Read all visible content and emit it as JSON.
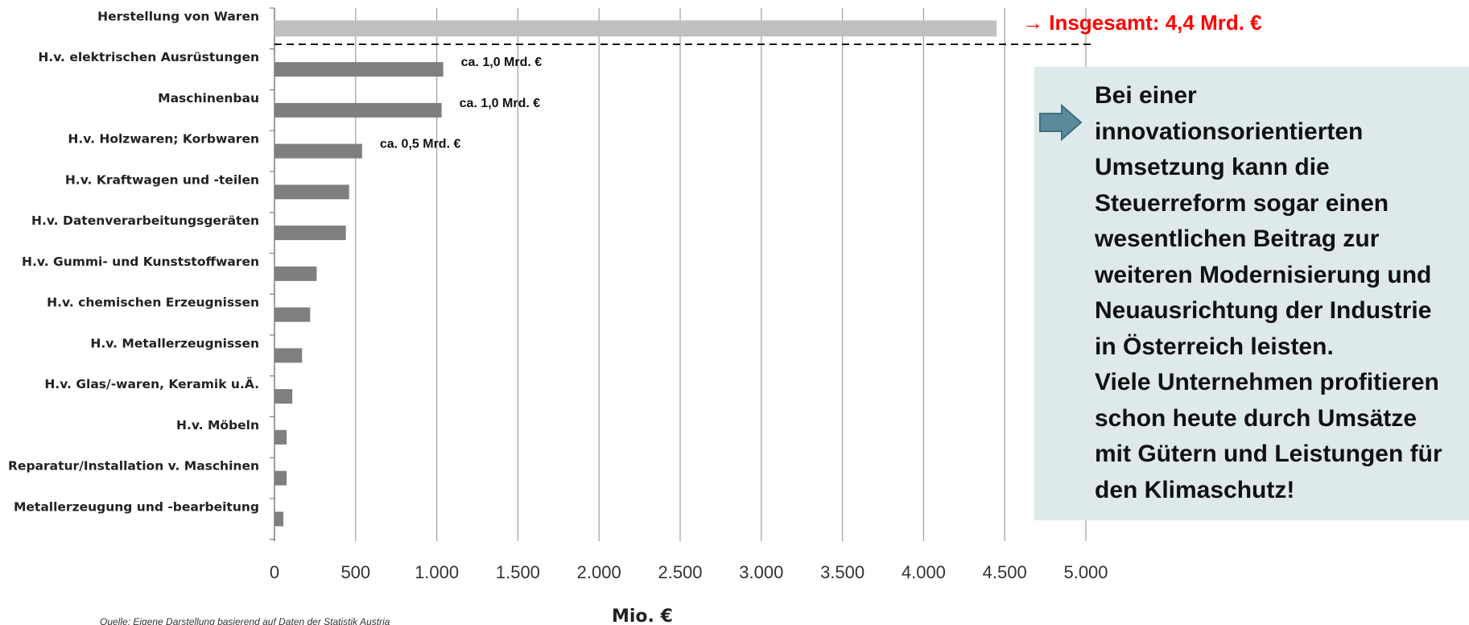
{
  "chart_data": {
    "type": "bar",
    "orientation": "horizontal",
    "categories": [
      "Herstellung von Waren",
      "H.v. elektrischen Ausrüstungen",
      "Maschinenbau",
      "H.v. Holzwaren; Korbwaren",
      "H.v. Kraftwagen und -teilen",
      "H.v. Datenverarbeitungsgeräten",
      "H.v. Gummi- und Kunststoffwaren",
      "H.v. chemischen Erzeugnissen",
      "H.v. Metallerzeugnissen",
      "H.v. Glas/-waren, Keramik u.Ä.",
      "H.v. Möbeln",
      "Reparatur/Installation v. Maschinen",
      "Metallerzeugung und -bearbeitung"
    ],
    "values": [
      4450,
      1040,
      1030,
      540,
      460,
      440,
      260,
      220,
      170,
      110,
      75,
      75,
      55
    ],
    "bar_colors": [
      "#c0c0c0",
      "#7f7f7f",
      "#7f7f7f",
      "#7f7f7f",
      "#7f7f7f",
      "#7f7f7f",
      "#7f7f7f",
      "#7f7f7f",
      "#7f7f7f",
      "#7f7f7f",
      "#7f7f7f",
      "#7f7f7f",
      "#7f7f7f"
    ],
    "xlim": [
      0,
      5000
    ],
    "xticks": [
      0,
      500,
      1000,
      1500,
      2000,
      2500,
      3000,
      3500,
      4000,
      4500,
      5000
    ],
    "xtick_labels": [
      "0",
      "500",
      "1.000",
      "1.500",
      "2.000",
      "2.500",
      "3.000",
      "3.500",
      "4.000",
      "4.500",
      "5.000"
    ],
    "xlabel": "Mio. €",
    "grid": "vertical",
    "annotations": [
      {
        "category_index": 1,
        "text": "ca. 1,0 Mrd. €"
      },
      {
        "category_index": 2,
        "text": "ca. 1,0 Mrd. €"
      },
      {
        "category_index": 3,
        "text": "ca. 0,5 Mrd. €"
      }
    ],
    "total_annotation": {
      "text": "→ Insgesamt: 4,4 Mrd. €",
      "color": "#ff0000"
    }
  },
  "callout": {
    "lines": [
      "Bei einer",
      "innovationsorientierten",
      "Umsetzung kann die",
      "Steuerreform sogar einen",
      "wesentlichen Beitrag zur",
      "weiteren Modernisierung und",
      "Neuausrichtung der Industrie",
      "in Österreich leisten.",
      "Viele Unternehmen profitieren",
      "schon heute durch Umsätze",
      "mit Gütern und Leistungen für",
      "den Klimaschutz!"
    ],
    "arrow_icon": "right-arrow-icon",
    "background": "#dde9ea",
    "arrow_color": "#5b8a9a"
  },
  "source": "Quelle: Eigene Darstellung basierend auf Daten der Statistik Austria"
}
